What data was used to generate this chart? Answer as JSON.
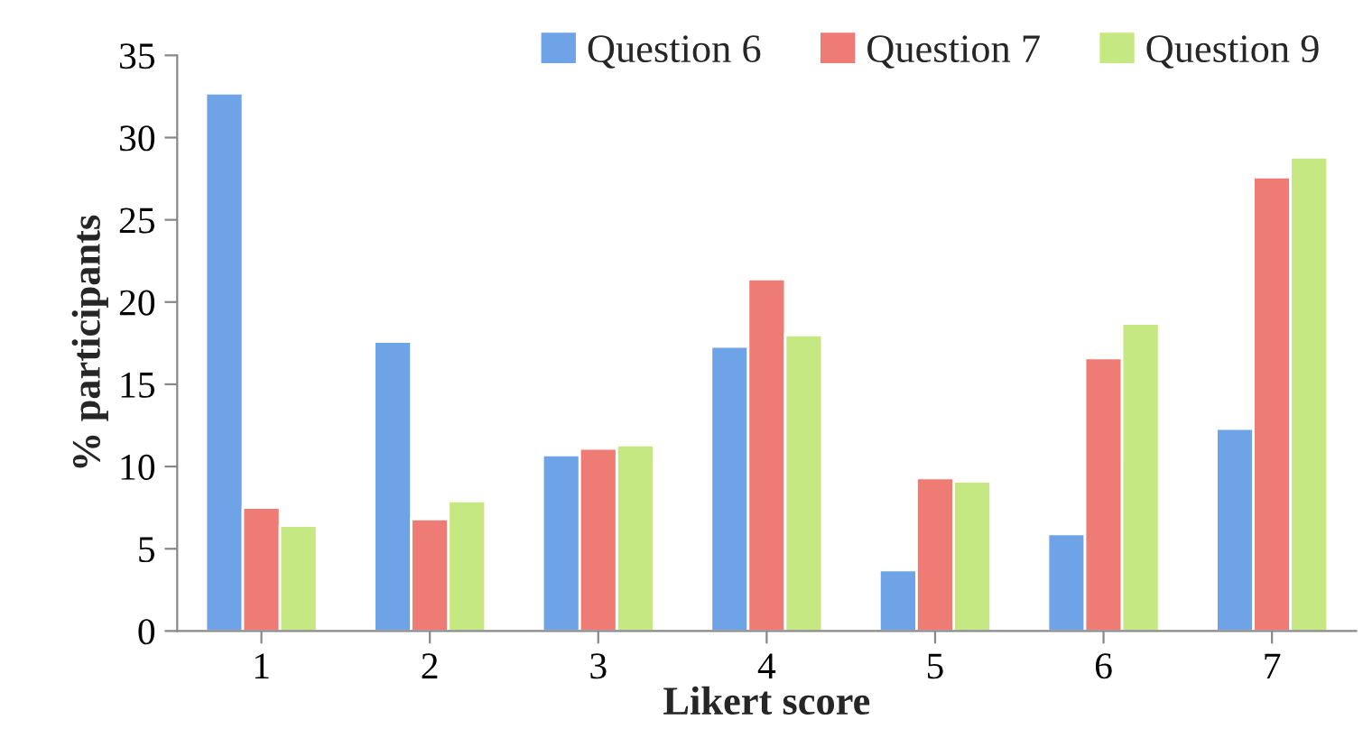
{
  "chart_data": {
    "type": "bar",
    "xlabel": "Likert score",
    "ylabel": "% participants",
    "categories": [
      "1",
      "2",
      "3",
      "4",
      "5",
      "6",
      "7"
    ],
    "series": [
      {
        "name": "Question 6",
        "color": "#6fa3e8",
        "values": [
          32.7,
          17.6,
          10.7,
          17.3,
          3.7,
          5.9,
          12.3
        ]
      },
      {
        "name": "Question 7",
        "color": "#ee7b74",
        "values": [
          7.5,
          6.8,
          11.1,
          21.4,
          9.3,
          16.6,
          27.6
        ]
      },
      {
        "name": "Question 9",
        "color": "#c6e882",
        "values": [
          6.4,
          7.9,
          11.3,
          18.0,
          9.1,
          18.7,
          28.8
        ]
      }
    ],
    "ylim": [
      0,
      35
    ],
    "yticks": [
      0,
      5,
      10,
      15,
      20,
      25,
      30,
      35
    ],
    "grid": false,
    "legend": "top right"
  }
}
